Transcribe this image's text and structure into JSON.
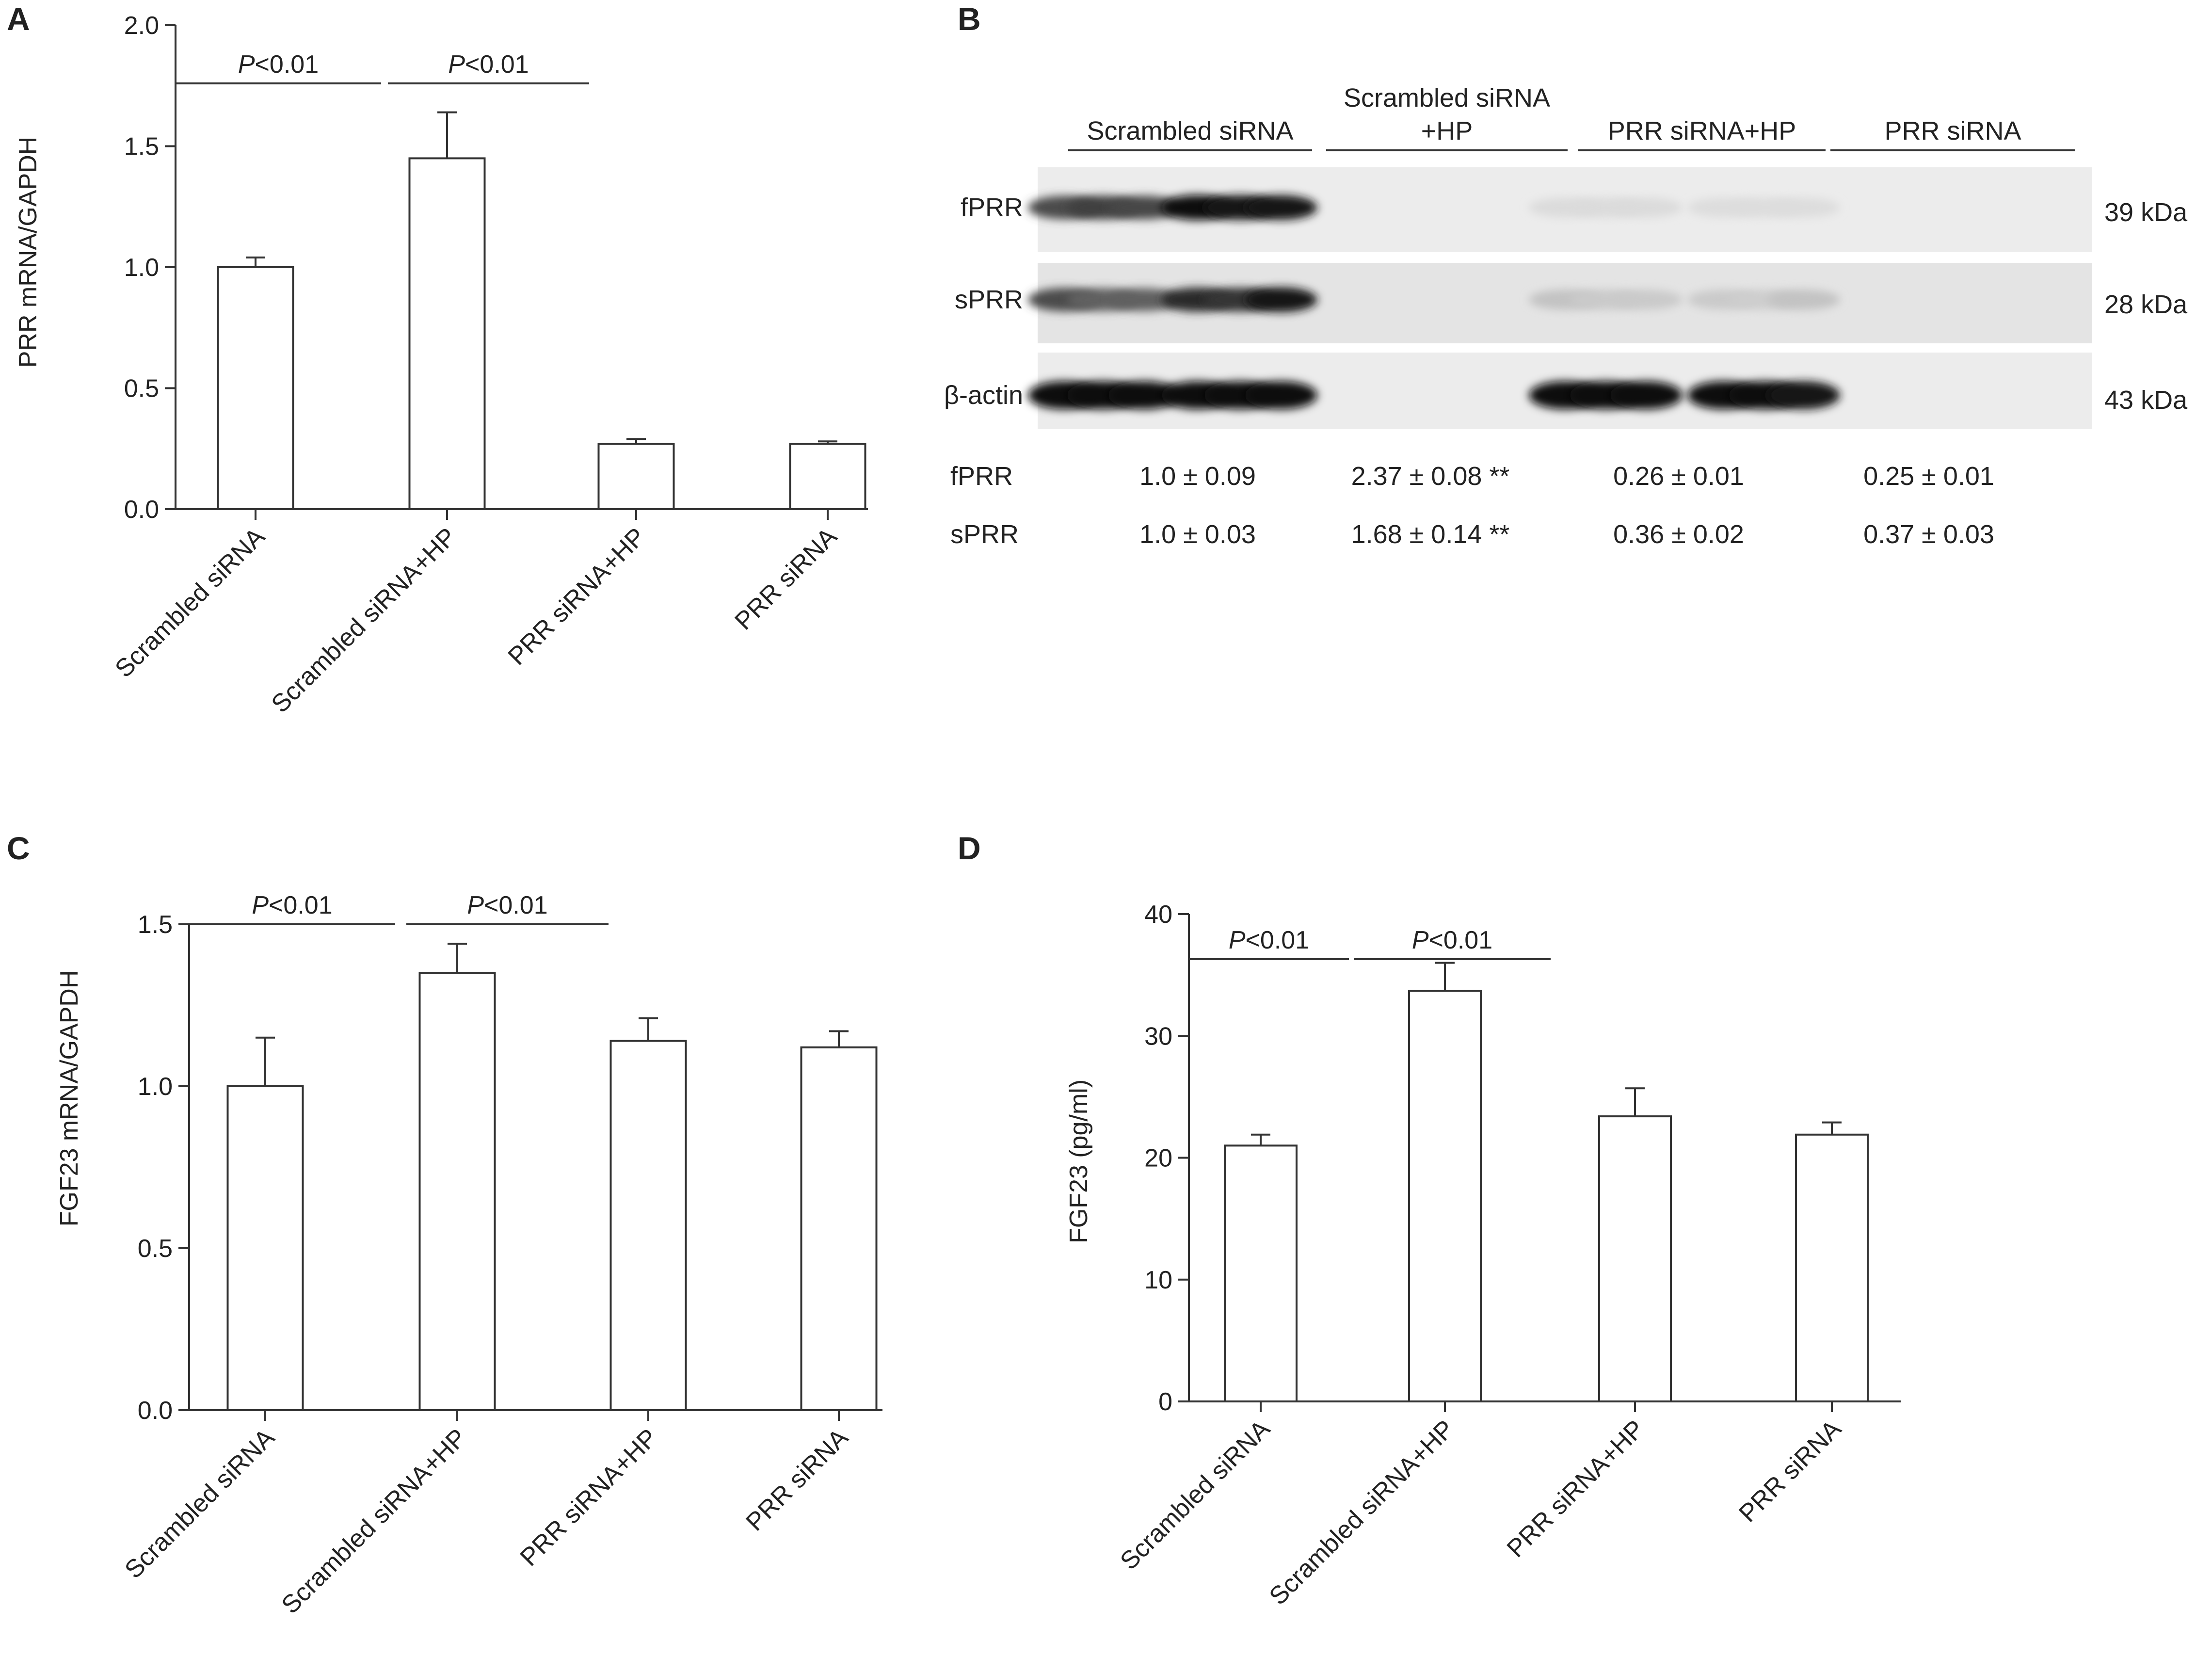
{
  "panels": {
    "A": "A",
    "B": "B",
    "C": "C",
    "D": "D"
  },
  "chart_data": [
    {
      "panel": "A",
      "type": "bar",
      "categories": [
        "Scrambled siRNA",
        "Scrambled siRNA+HP",
        "PRR siRNA+HP",
        "PRR siRNA"
      ],
      "values": [
        1.0,
        1.45,
        0.27,
        0.27
      ],
      "errors": [
        0.04,
        0.19,
        0.02,
        0.01
      ],
      "ylabel": "PRR mRNA/GAPDH",
      "xlabel": "",
      "ylim": [
        0,
        2.0
      ],
      "yticks": [
        0.0,
        0.5,
        1.0,
        1.5,
        2.0
      ],
      "ytick_labels": [
        "0.0",
        "0.5",
        "1.0",
        "1.5",
        "2.0"
      ],
      "significance": [
        {
          "from": 0,
          "to": 1,
          "italic": "P",
          "rest": "<0.01"
        },
        {
          "from": 1,
          "to": 2,
          "italic": "P",
          "rest": "<0.01"
        }
      ],
      "grid": false,
      "legend": "none"
    },
    {
      "panel": "C",
      "type": "bar",
      "categories": [
        "Scrambled siRNA",
        "Scrambled siRNA+HP",
        "PRR siRNA+HP",
        "PRR siRNA"
      ],
      "values": [
        1.0,
        1.35,
        1.14,
        1.12
      ],
      "errors": [
        0.15,
        0.09,
        0.07,
        0.05
      ],
      "ylabel": "FGF23 mRNA/GAPDH",
      "xlabel": "",
      "ylim": [
        0,
        1.5
      ],
      "yticks": [
        0.0,
        0.5,
        1.0,
        1.5
      ],
      "ytick_labels": [
        "0.0",
        "0.5",
        "1.0",
        "1.5"
      ],
      "significance": [
        {
          "from": 0,
          "to": 1,
          "italic": "P",
          "rest": "<0.01"
        },
        {
          "from": 1,
          "to": 2,
          "italic": "P",
          "rest": "<0.01"
        }
      ],
      "grid": false,
      "legend": "none"
    },
    {
      "panel": "D",
      "type": "bar",
      "categories": [
        "Scrambled siRNA",
        "Scrambled siRNA+HP",
        "PRR siRNA+HP",
        "PRR siRNA"
      ],
      "values": [
        21.0,
        33.7,
        23.4,
        21.9
      ],
      "errors": [
        0.9,
        2.3,
        2.3,
        1.0
      ],
      "ylabel": "FGF23 (pg/ml)",
      "xlabel": "",
      "ylim": [
        0,
        40
      ],
      "yticks": [
        0,
        10,
        20,
        30,
        40
      ],
      "ytick_labels": [
        "0",
        "10",
        "20",
        "30",
        "40"
      ],
      "significance": [
        {
          "from": 0,
          "to": 1,
          "italic": "P",
          "rest": "<0.01"
        },
        {
          "from": 1,
          "to": 2,
          "italic": "P",
          "rest": "<0.01"
        }
      ],
      "grid": false,
      "legend": "none"
    }
  ],
  "western_blot": {
    "groups": [
      {
        "lines": [
          "Scrambled siRNA"
        ]
      },
      {
        "lines": [
          "Scrambled siRNA",
          "+HP"
        ]
      },
      {
        "lines": [
          "PRR siRNA+HP"
        ]
      },
      {
        "lines": [
          "PRR siRNA"
        ]
      }
    ],
    "rows": [
      {
        "label": "fPRR",
        "size": "39 kDa",
        "intensity": [
          0.7,
          0.75,
          0.72,
          1.0,
          0.95,
          0.93,
          0.04,
          0.04,
          0.04,
          0.03,
          0.03,
          0.03
        ]
      },
      {
        "label": "sPRR",
        "size": "28 kDa",
        "intensity": [
          0.7,
          0.6,
          0.6,
          0.85,
          0.8,
          0.95,
          0.15,
          0.12,
          0.12,
          0.12,
          0.1,
          0.15
        ]
      },
      {
        "label": "β-actin",
        "size": "43 kDa",
        "intensity": [
          1.0,
          1.0,
          1.0,
          1.0,
          1.0,
          1.0,
          1.0,
          1.0,
          1.0,
          1.0,
          1.0,
          0.95
        ]
      }
    ],
    "quant": [
      {
        "label": "fPRR",
        "values": [
          "1.0 ± 0.09",
          "2.37 ± 0.08 **",
          "0.26 ± 0.01",
          "0.25 ± 0.01"
        ]
      },
      {
        "label": "sPRR",
        "values": [
          "1.0 ± 0.03",
          "1.68 ± 0.14 **",
          "0.36 ± 0.02",
          "0.37 ± 0.03"
        ]
      }
    ]
  }
}
